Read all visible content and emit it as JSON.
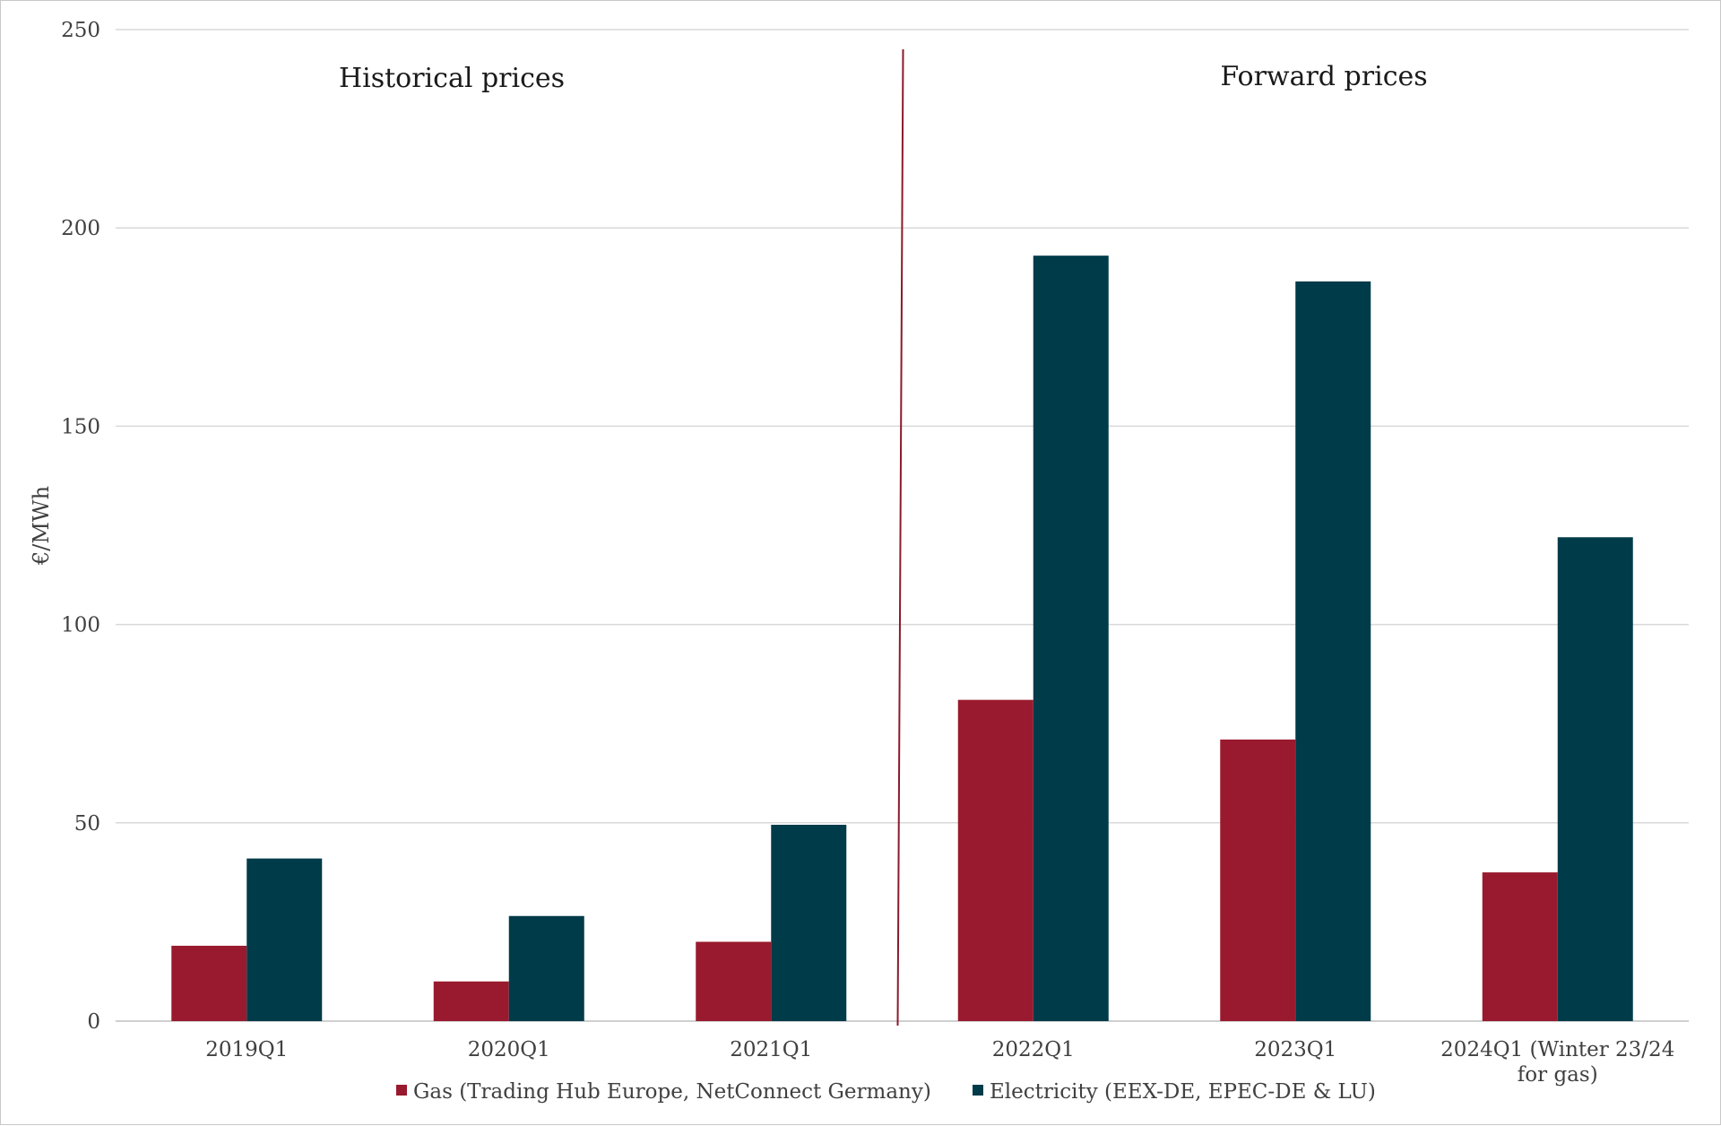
{
  "chart_data": {
    "type": "bar",
    "ylabel": "€/MWh",
    "ylim": [
      0,
      250
    ],
    "yticks": [
      0,
      50,
      100,
      150,
      200,
      250
    ],
    "grid": true,
    "legend_position": "bottom",
    "categories": [
      [
        "2019Q1"
      ],
      [
        "2020Q1"
      ],
      [
        "2021Q1"
      ],
      [
        "2022Q1"
      ],
      [
        "2023Q1"
      ],
      [
        "2024Q1 (Winter 23/24",
        "for gas)"
      ]
    ],
    "series": [
      {
        "name": "Gas (Trading Hub Europe, NetConnect Germany)",
        "color": "#991a2e",
        "values": [
          19,
          10,
          20,
          81,
          71,
          37.5
        ]
      },
      {
        "name": "Electricity (EEX-DE, EPEC-DE & LU)",
        "color": "#003b4a",
        "values": [
          41,
          26.5,
          49.5,
          193,
          186.5,
          122
        ]
      }
    ],
    "annotations": [
      {
        "text": "Historical prices",
        "region": "left"
      },
      {
        "text": "Forward prices",
        "region": "right"
      }
    ],
    "divider_color": "#8b1a2b",
    "divider_between_categories": [
      2,
      3
    ]
  }
}
